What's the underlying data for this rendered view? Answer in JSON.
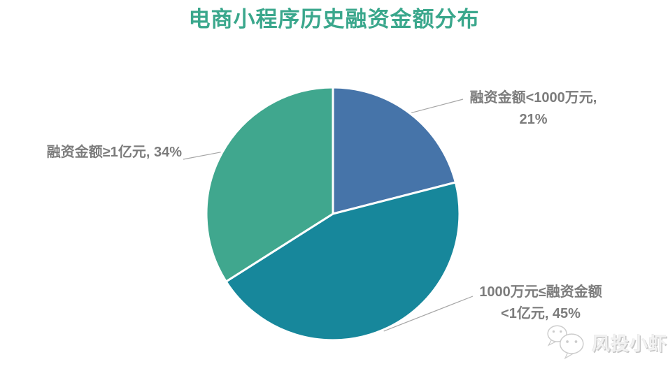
{
  "title": {
    "text": "电商小程序历史融资金额分布",
    "color": "#3AA78C"
  },
  "chart_data": {
    "type": "pie",
    "title": "电商小程序历史融资金额分布",
    "start_angle_deg": 0,
    "direction": "clockwise",
    "legend": "none",
    "data_labels_style": "outside-with-leader-lines",
    "label_color": "#7C7C7C",
    "leader_line_color": "#A6A6A6",
    "slice_border_color": "#FFFFFF",
    "series": [
      {
        "name": "融资金额<1000万元",
        "value_pct": 21,
        "color": "#4674A9"
      },
      {
        "name": "1000万元≤融资金额<1亿元",
        "value_pct": 45,
        "color": "#17879B"
      },
      {
        "name": "融资金额≥1亿元",
        "value_pct": 34,
        "color": "#40A78E"
      }
    ],
    "data_labels": [
      {
        "lines": [
          "融资金额<1000万元,",
          "21%"
        ]
      },
      {
        "lines": [
          "1000万元≤融资金额",
          "<1亿元, 45%"
        ]
      },
      {
        "lines": [
          "融资金额≥1亿元, 34%"
        ]
      }
    ]
  },
  "watermark": {
    "text": "风投小虾",
    "icon": "wechat-icon"
  }
}
